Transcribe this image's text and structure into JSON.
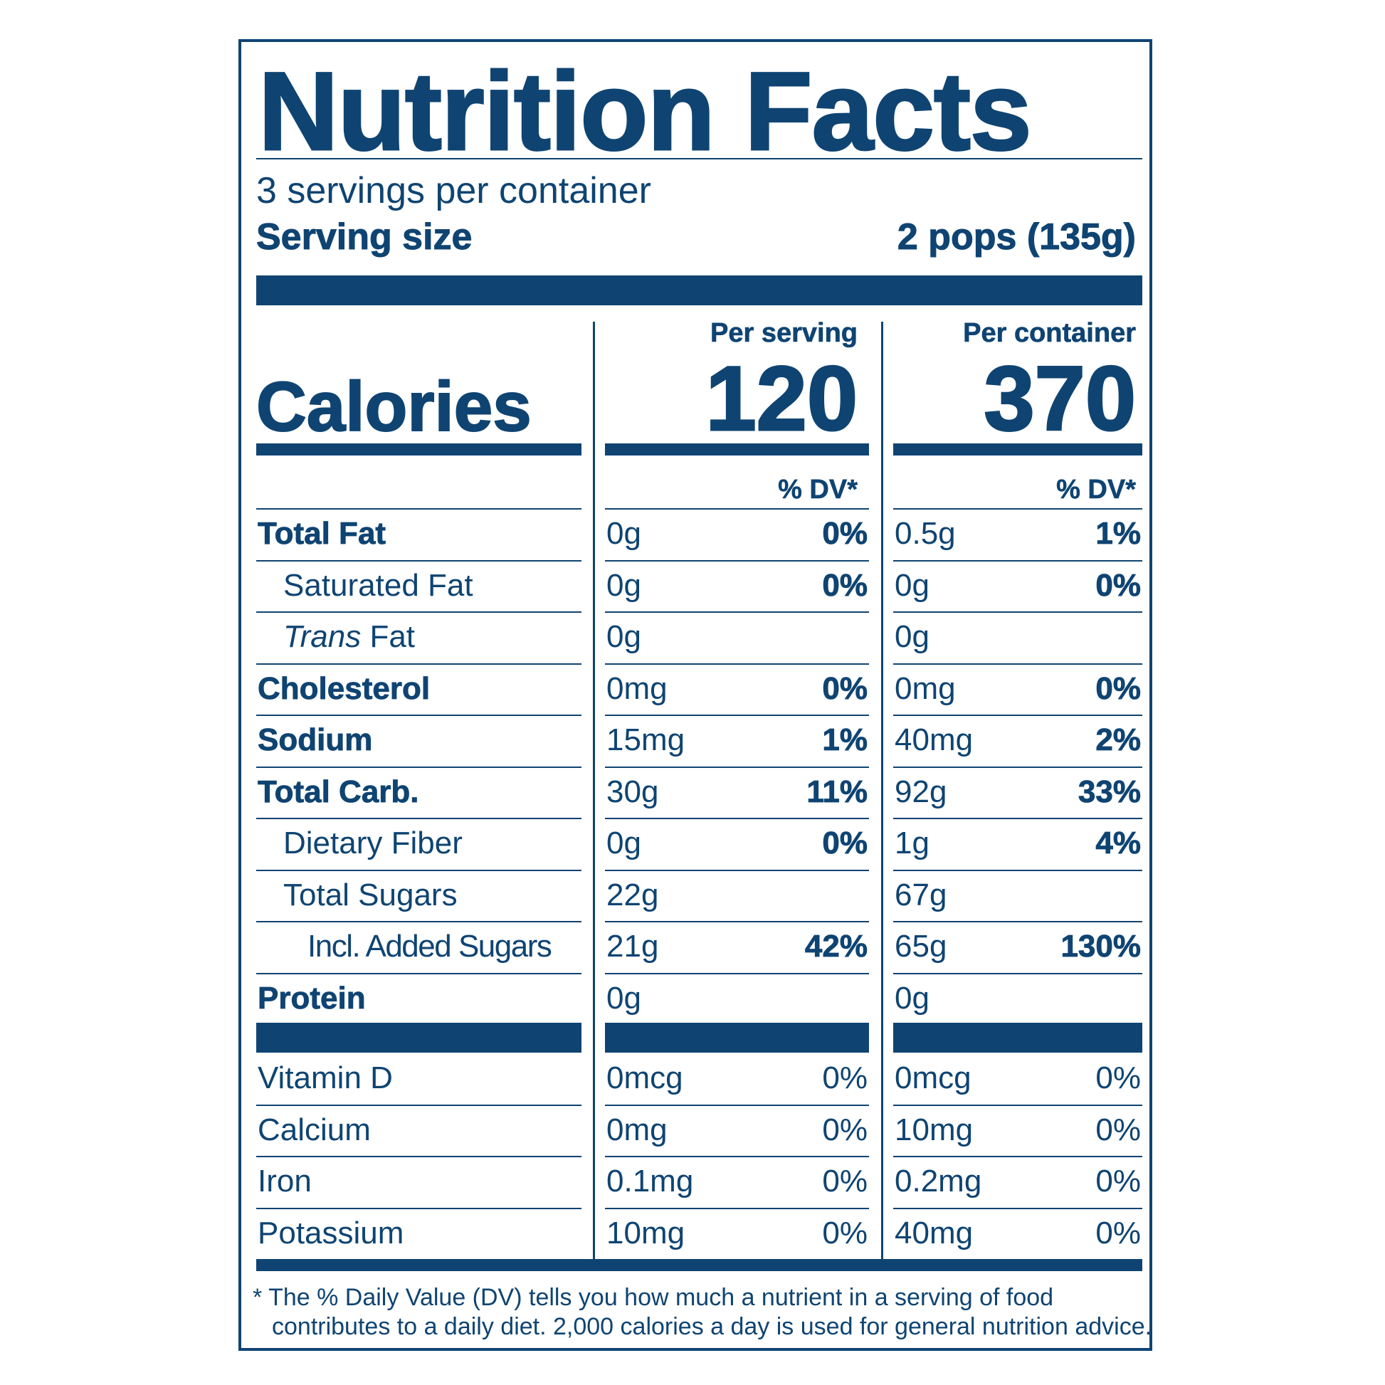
{
  "title": "Nutrition Facts",
  "servings_per_container": "3 servings per container",
  "serving_size": {
    "label": "Serving size",
    "value": "2 pops (135g)"
  },
  "columns": {
    "per_serving": "Per serving",
    "per_container": "Per container"
  },
  "calories": {
    "label": "Calories",
    "per_serving": "120",
    "per_container": "370"
  },
  "dv_header": "% DV*",
  "nutrients": [
    {
      "name": "Total Fat",
      "serving_amount": "0g",
      "serving_dv": "0%",
      "container_amount": "0.5g",
      "container_dv": "1%"
    },
    {
      "name": "Saturated Fat",
      "serving_amount": "0g",
      "serving_dv": "0%",
      "container_amount": "0g",
      "container_dv": "0%"
    },
    {
      "name_italic": "Trans",
      "name_rest": " Fat",
      "serving_amount": "0g",
      "serving_dv": "",
      "container_amount": "0g",
      "container_dv": ""
    },
    {
      "name": "Cholesterol",
      "serving_amount": "0mg",
      "serving_dv": "0%",
      "container_amount": "0mg",
      "container_dv": "0%"
    },
    {
      "name": "Sodium",
      "serving_amount": "15mg",
      "serving_dv": "1%",
      "container_amount": "40mg",
      "container_dv": "2%"
    },
    {
      "name": "Total Carb.",
      "serving_amount": "30g",
      "serving_dv": "11%",
      "container_amount": "92g",
      "container_dv": "33%"
    },
    {
      "name": "Dietary Fiber",
      "serving_amount": "0g",
      "serving_dv": "0%",
      "container_amount": "1g",
      "container_dv": "4%"
    },
    {
      "name": "Total Sugars",
      "serving_amount": "22g",
      "serving_dv": "",
      "container_amount": "67g",
      "container_dv": ""
    },
    {
      "name": "Incl. Added Sugars",
      "serving_amount": "21g",
      "serving_dv": "42%",
      "container_amount": "65g",
      "container_dv": "130%"
    },
    {
      "name": "Protein",
      "serving_amount": "0g",
      "serving_dv": "",
      "container_amount": "0g",
      "container_dv": ""
    }
  ],
  "vitamins": [
    {
      "name": "Vitamin D",
      "serving_amount": "0mcg",
      "serving_dv": "0%",
      "container_amount": "0mcg",
      "container_dv": "0%"
    },
    {
      "name": "Calcium",
      "serving_amount": "0mg",
      "serving_dv": "0%",
      "container_amount": "10mg",
      "container_dv": "0%"
    },
    {
      "name": "Iron",
      "serving_amount": "0.1mg",
      "serving_dv": "0%",
      "container_amount": "0.2mg",
      "container_dv": "0%"
    },
    {
      "name": "Potassium",
      "serving_amount": "10mg",
      "serving_dv": "0%",
      "container_amount": "40mg",
      "container_dv": "0%"
    }
  ],
  "footnote": {
    "line1": "* The % Daily Value (DV) tells you how much a nutrient in a serving of food",
    "line2": "contributes to a daily diet. 2,000 calories a day is used for general nutrition advice."
  },
  "colors": {
    "ink": "#0f4472",
    "background": "#ffffff"
  }
}
